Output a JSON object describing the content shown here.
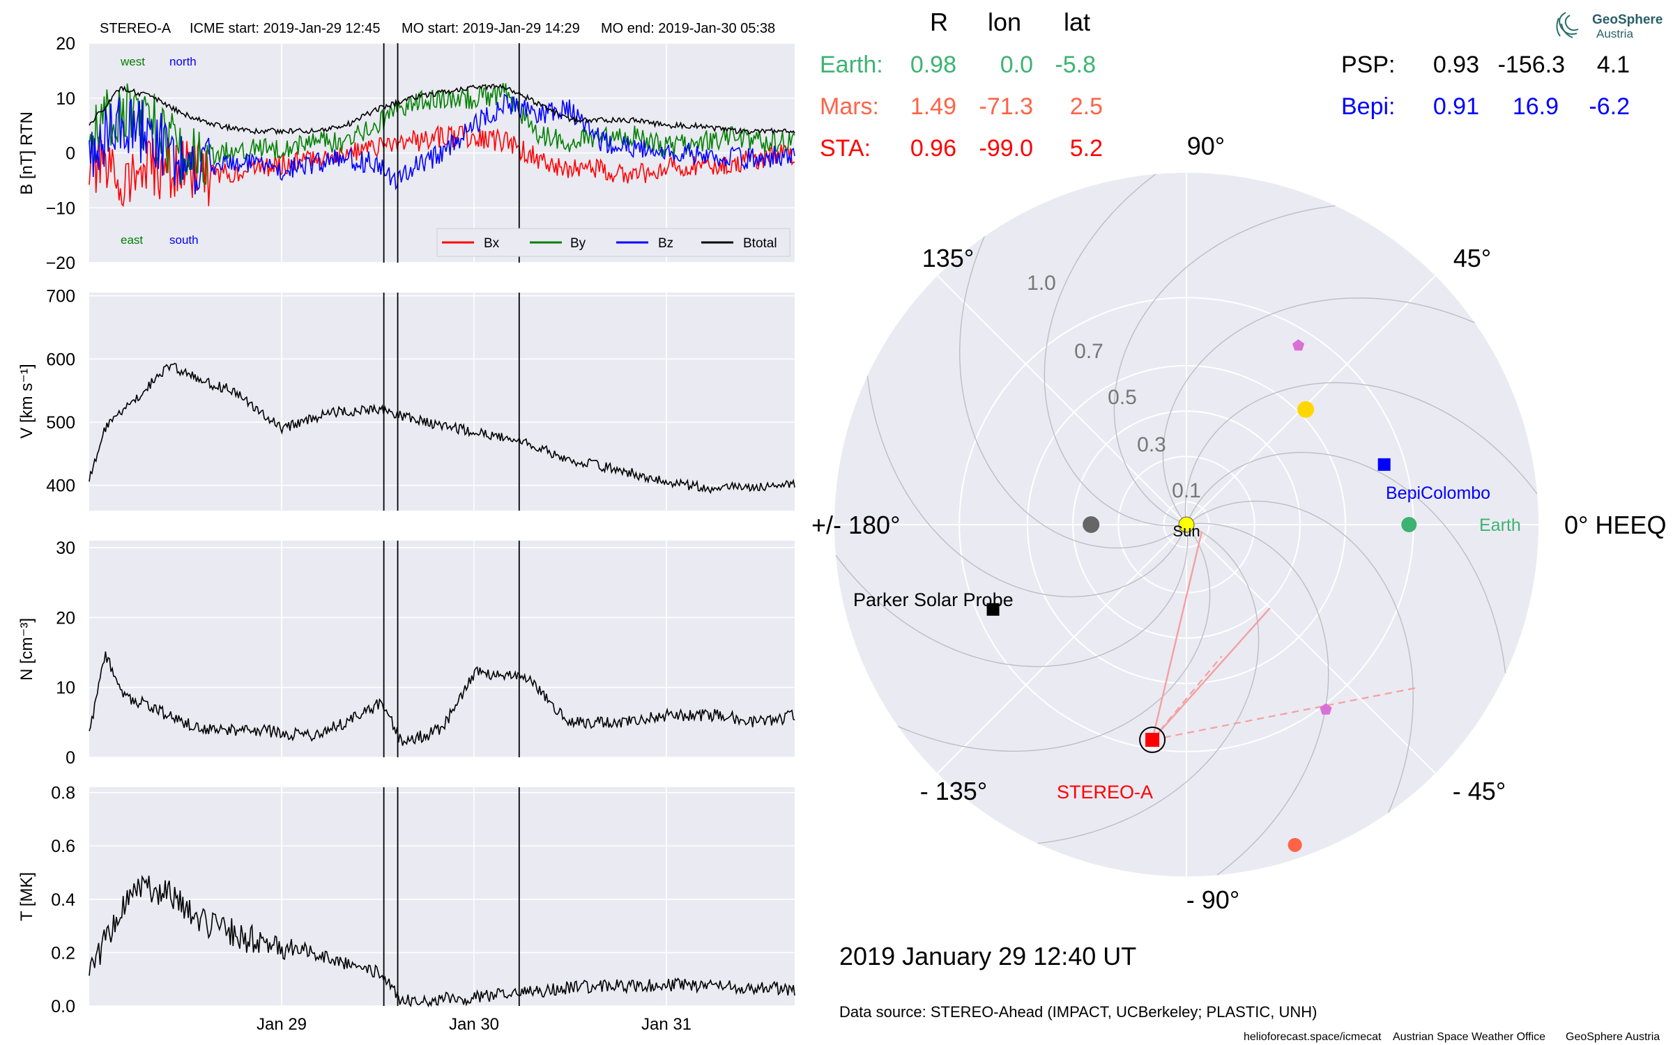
{
  "header": {
    "spacecraft": "STEREO-A",
    "icme_start": "ICME start: 2019-Jan-29 12:45",
    "mo_start": "MO start: 2019-Jan-29 14:29",
    "mo_end": "MO end: 2019-Jan-30 05:38"
  },
  "panels": {
    "b": {
      "ylabel": "B [nT] RTN",
      "yticks": [
        "20",
        "10",
        "0",
        "−10",
        "−20"
      ],
      "annotations": {
        "west": "west",
        "north": "north",
        "east": "east",
        "south": "south"
      },
      "legend": [
        "Bx",
        "By",
        "Bz",
        "Btotal"
      ]
    },
    "v": {
      "ylabel": "V [km s⁻¹]",
      "yticks": [
        "700",
        "600",
        "500",
        "400"
      ]
    },
    "n": {
      "ylabel": "N [cm⁻³]",
      "yticks": [
        "30",
        "20",
        "10",
        "0"
      ]
    },
    "t": {
      "ylabel": "T [MK]",
      "yticks": [
        "0.8",
        "0.6",
        "0.4",
        "0.2",
        "0.0"
      ]
    },
    "xticks": [
      "Jan 29",
      "Jan 30",
      "Jan 31"
    ]
  },
  "colors": {
    "bx": "#ff0000",
    "by": "#008000",
    "bz": "#0000ff",
    "btotal": "#000000",
    "earth": "#3cb371",
    "mars": "#ff6347",
    "sta": "#ff0000",
    "psp": "#000000",
    "bepi": "#0000ff",
    "panel_bg": "#eaeaf2",
    "sun": "#ffff00"
  },
  "positions_table": {
    "headers": [
      "R",
      "lon",
      "lat"
    ],
    "rows": [
      {
        "name": "Earth:",
        "r": "0.98",
        "lon": "0.0",
        "lat": "-5.8"
      },
      {
        "name": "Mars:",
        "r": "1.49",
        "lon": "-71.3",
        "lat": "2.5"
      },
      {
        "name": "STA:",
        "r": "0.96",
        "lon": "-99.0",
        "lat": "5.2"
      }
    ],
    "right_rows": [
      {
        "name": "PSP:",
        "r": "0.93",
        "lon": "-156.3",
        "lat": "4.1"
      },
      {
        "name": "Bepi:",
        "r": "0.91",
        "lon": "16.9",
        "lat": "-6.2"
      }
    ]
  },
  "polar": {
    "angle_labels": {
      "deg90": "90°",
      "deg45": "45°",
      "deg135": "135°",
      "deg0": "0° HEEQ",
      "deg180": "+/- 180°",
      "degm45": "- 45°",
      "degm90": "- 90°",
      "degm135": "- 135°"
    },
    "radial_labels": [
      "1.0",
      "0.7",
      "0.5",
      "0.3",
      "0.1"
    ],
    "labels": {
      "sun": "Sun",
      "earth": "Earth",
      "bepi": "BepiColombo",
      "psp": "Parker Solar Probe",
      "stereo": "STEREO-A"
    }
  },
  "timestamp": "2019 January 29  12:40 UT",
  "data_source": "Data source: STEREO-Ahead (IMPACT, UCBerkeley; PLASTIC, UNH)",
  "footer": {
    "site": "helioforecast.space/icmecat",
    "office": "Austrian Space Weather Office",
    "org": "GeoSphere Austria"
  },
  "logo": {
    "line1": "GeoSphere",
    "line2": "Austria"
  },
  "chart_data": [
    {
      "type": "line",
      "title": "STEREO-A",
      "ylabel": "B [nT] RTN",
      "ylim": [
        -20,
        20
      ],
      "x_range": [
        "2019-01-28 00:00",
        "2019-01-31 16:00"
      ],
      "x_ticks": [
        "Jan 29",
        "Jan 30",
        "Jan 31"
      ],
      "event_lines": [
        "2019-01-29 12:45",
        "2019-01-29 14:29",
        "2019-01-30 05:38"
      ],
      "grid": true,
      "legend_position": "lower right",
      "x": [
        "2019-01-28 00:00",
        "2019-01-28 04:00",
        "2019-01-28 08:00",
        "2019-01-28 12:00",
        "2019-01-28 16:00",
        "2019-01-28 20:00",
        "2019-01-29 00:00",
        "2019-01-29 04:00",
        "2019-01-29 08:00",
        "2019-01-29 12:00",
        "2019-01-29 14:00",
        "2019-01-29 16:00",
        "2019-01-29 20:00",
        "2019-01-30 00:00",
        "2019-01-30 04:00",
        "2019-01-30 08:00",
        "2019-01-30 12:00",
        "2019-01-30 16:00",
        "2019-01-30 20:00",
        "2019-01-31 00:00",
        "2019-01-31 04:00",
        "2019-01-31 08:00",
        "2019-01-31 12:00",
        "2019-01-31 16:00"
      ],
      "series": [
        {
          "name": "Bx",
          "values": [
            -2,
            -5,
            -3,
            -3,
            -4,
            -3,
            -2,
            -1,
            0,
            1,
            2,
            2,
            3,
            3,
            2,
            -1,
            -3,
            -3,
            -4,
            -3,
            -2,
            -2,
            -1,
            0
          ]
        },
        {
          "name": "By",
          "values": [
            3,
            8,
            5,
            -1,
            0,
            1,
            1,
            2,
            2,
            5,
            8,
            9,
            10,
            10,
            11,
            3,
            2,
            3,
            3,
            1,
            2,
            3,
            2,
            2
          ]
        },
        {
          "name": "Bz",
          "values": [
            0,
            5,
            3,
            -3,
            -2,
            -2,
            -3,
            -2,
            -1,
            -2,
            -5,
            -3,
            0,
            5,
            9,
            7,
            8,
            2,
            1,
            0,
            0,
            -1,
            -1,
            0
          ]
        },
        {
          "name": "Btotal",
          "values": [
            5,
            12,
            10,
            7,
            5,
            4,
            4,
            4,
            5,
            8,
            9,
            10,
            11,
            12,
            12,
            9,
            6,
            6,
            6,
            5,
            5,
            4,
            4,
            4
          ]
        }
      ]
    },
    {
      "type": "line",
      "ylabel": "V [km s⁻¹]",
      "ylim": [
        360,
        705
      ],
      "x": [
        "2019-01-28 00:00",
        "2019-01-28 02:00",
        "2019-01-28 06:00",
        "2019-01-28 10:00",
        "2019-01-28 14:00",
        "2019-01-28 18:00",
        "2019-01-29 00:00",
        "2019-01-29 06:00",
        "2019-01-29 12:00",
        "2019-01-29 18:00",
        "2019-01-30 00:00",
        "2019-01-30 06:00",
        "2019-01-30 12:00",
        "2019-01-30 18:00",
        "2019-01-31 00:00",
        "2019-01-31 06:00",
        "2019-01-31 12:00",
        "2019-01-31 16:00"
      ],
      "series": [
        {
          "name": "",
          "values": [
            410,
            490,
            540,
            590,
            565,
            550,
            490,
            515,
            520,
            500,
            485,
            470,
            440,
            425,
            405,
            395,
            400,
            400
          ]
        }
      ]
    },
    {
      "type": "line",
      "ylabel": "N [cm⁻³]",
      "ylim": [
        0,
        31
      ],
      "x": [
        "2019-01-28 00:00",
        "2019-01-28 02:00",
        "2019-01-28 04:00",
        "2019-01-28 08:00",
        "2019-01-28 14:00",
        "2019-01-28 20:00",
        "2019-01-29 04:00",
        "2019-01-29 10:00",
        "2019-01-29 12:30",
        "2019-01-29 15:00",
        "2019-01-29 20:00",
        "2019-01-30 00:00",
        "2019-01-30 06:00",
        "2019-01-30 12:00",
        "2019-01-30 18:00",
        "2019-01-31 00:00",
        "2019-01-31 06:00",
        "2019-01-31 12:00",
        "2019-01-31 16:00"
      ],
      "series": [
        {
          "name": "",
          "values": [
            3,
            15,
            9,
            7,
            4,
            4,
            3,
            6,
            8,
            2,
            4,
            12,
            12,
            5,
            5,
            6,
            6,
            5,
            6
          ]
        }
      ]
    },
    {
      "type": "line",
      "ylabel": "T [MK]",
      "ylim": [
        0,
        0.82
      ],
      "x": [
        "2019-01-28 00:00",
        "2019-01-28 02:00",
        "2019-01-28 06:00",
        "2019-01-28 10:00",
        "2019-01-28 14:00",
        "2019-01-28 20:00",
        "2019-01-29 02:00",
        "2019-01-29 08:00",
        "2019-01-29 12:30",
        "2019-01-29 15:00",
        "2019-01-30 00:00",
        "2019-01-30 12:00",
        "2019-01-31 00:00",
        "2019-01-31 12:00",
        "2019-01-31 16:00"
      ],
      "series": [
        {
          "name": "",
          "values": [
            0.12,
            0.25,
            0.45,
            0.42,
            0.32,
            0.25,
            0.22,
            0.16,
            0.12,
            0.02,
            0.03,
            0.07,
            0.08,
            0.07,
            0.06
          ]
        }
      ]
    },
    {
      "type": "scatter",
      "title": "2019 January 29  12:40 UT",
      "angular_axis": "HEEQ longitude [deg]",
      "radial_ticks": [
        0.1,
        0.3,
        0.5,
        0.7,
        1.0
      ],
      "points": [
        {
          "name": "Sun",
          "lon": 0,
          "r": 0
        },
        {
          "name": "Earth",
          "lon": 0.0,
          "r": 0.98
        },
        {
          "name": "Mars",
          "lon": -71.3,
          "r": 1.49
        },
        {
          "name": "STEREO-A",
          "lon": -99.0,
          "r": 0.96
        },
        {
          "name": "Parker Solar Probe",
          "lon": -156.3,
          "r": 0.93
        },
        {
          "name": "BepiColombo",
          "lon": 16.9,
          "r": 0.91
        },
        {
          "name": "",
          "lon": 44,
          "r": 0.73
        },
        {
          "name": "",
          "lon": 180,
          "r": 0.42
        },
        {
          "name": "",
          "lon": 58,
          "r": 0.93
        },
        {
          "name": "",
          "lon": -53,
          "r": 1.02
        }
      ]
    }
  ]
}
